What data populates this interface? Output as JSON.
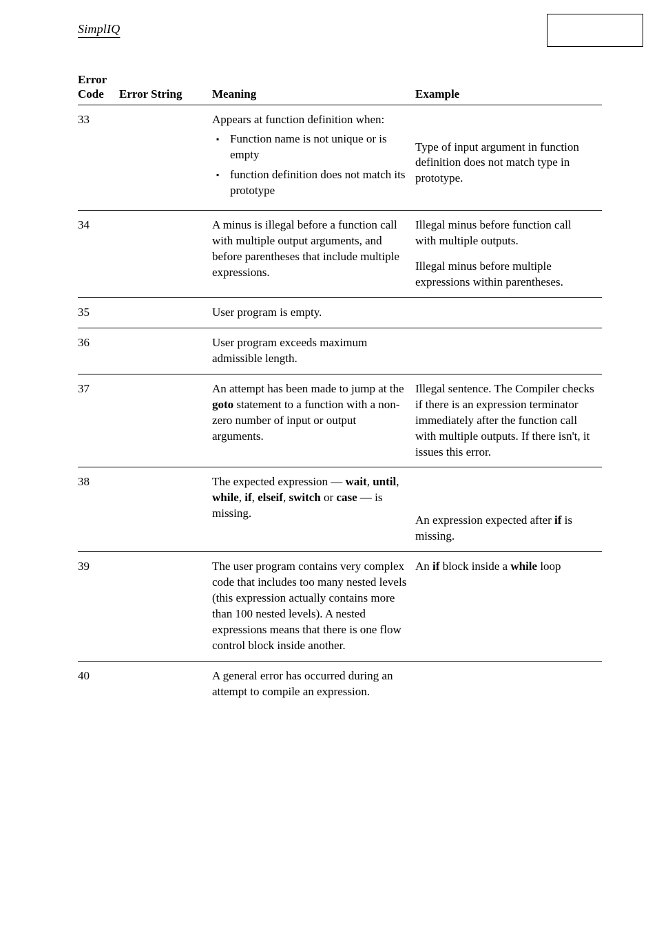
{
  "header": {
    "running_title": "SimplIQ"
  },
  "table": {
    "head": {
      "code_l1": "Error",
      "code_l2": "Code",
      "error_string": "Error String",
      "meaning": "Meaning",
      "example": "Example"
    },
    "rows": [
      {
        "code": "33",
        "error_string": "",
        "meaning_lead": "Appears at function definition when:",
        "meaning_bullets": [
          "Function name is not unique or is empty",
          "function definition does not match its prototype"
        ],
        "example_paras": [
          "Type of input argument in function definition does not match type in prototype."
        ]
      },
      {
        "code": "34",
        "error_string": "",
        "meaning_lead": "A minus is illegal before a function call with multiple output arguments, and before parentheses that include multiple expressions.",
        "meaning_bullets": [],
        "example_paras": [
          "Illegal minus before function call with multiple outputs.",
          "Illegal minus before multiple expressions within parentheses."
        ]
      },
      {
        "code": "35",
        "error_string": "",
        "meaning_lead": "User program is empty.",
        "meaning_bullets": [],
        "example_paras": []
      },
      {
        "code": "36",
        "error_string": "",
        "meaning_lead": "User program exceeds maximum admissible length.",
        "meaning_bullets": [],
        "example_paras": []
      },
      {
        "code": "37",
        "error_string": "",
        "meaning_html": "An attempt has been made to jump at the <b>goto</b> statement to a function with a non-zero number of input or output arguments.",
        "example_paras": [
          "Illegal sentence. The Compiler checks if there is an expression terminator immediately after the function call with multiple outputs. If there isn't, it issues this error."
        ]
      },
      {
        "code": "38",
        "error_string": "",
        "meaning_html": "The expected expression — <b>wait</b>, <b>until</b>, <b>while</b>, <b>if</b>, <b>elseif</b>, <b>switch</b> or <b>case</b> — is missing.",
        "example_html": "An expression expected after <b>if</b> is missing."
      },
      {
        "code": "39",
        "error_string": "",
        "meaning_lead": "The user program contains very complex code that includes too many nested levels (this expression actually contains more than 100 nested levels). A nested expressions means that there is one flow control block inside another.",
        "meaning_bullets": [],
        "example_html": "An <b>if</b> block inside a <b>while</b> loop"
      },
      {
        "code": "40",
        "error_string": "",
        "meaning_lead": "A general error has occurred during an attempt to compile an expression.",
        "meaning_bullets": [],
        "example_paras": []
      }
    ]
  }
}
